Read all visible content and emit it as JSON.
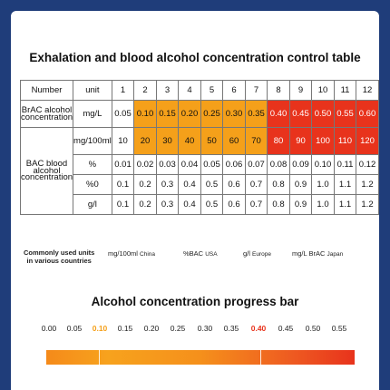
{
  "title": "Exhalation and blood alcohol concentration control table",
  "table": {
    "header": {
      "number_label": "Number",
      "unit_label": "unit",
      "columns": [
        "1",
        "2",
        "3",
        "4",
        "5",
        "6",
        "7",
        "8",
        "9",
        "10",
        "11",
        "12"
      ]
    },
    "brac": {
      "label": "BrAC alcohol concentration",
      "unit": "mg/L",
      "values": [
        "0.05",
        "0.10",
        "0.15",
        "0.20",
        "0.25",
        "0.30",
        "0.35",
        "0.40",
        "0.45",
        "0.50",
        "0.55",
        "0.60"
      ]
    },
    "bac": {
      "label": "BAC blood alcohol concentration",
      "rows": [
        {
          "unit": "mg/100ml",
          "values": [
            "10",
            "20",
            "30",
            "40",
            "50",
            "60",
            "70",
            "80",
            "90",
            "100",
            "110",
            "120"
          ]
        },
        {
          "unit": "%",
          "values": [
            "0.01",
            "0.02",
            "0.03",
            "0.04",
            "0.05",
            "0.06",
            "0.07",
            "0.08",
            "0.09",
            "0.10",
            "0.11",
            "0.12"
          ]
        },
        {
          "unit": "%0",
          "values": [
            "0.1",
            "0.2",
            "0.3",
            "0.4",
            "0.5",
            "0.6",
            "0.7",
            "0.8",
            "0.9",
            "1.0",
            "1.1",
            "1.2"
          ]
        },
        {
          "unit": "g/l",
          "values": [
            "0.1",
            "0.2",
            "0.3",
            "0.4",
            "0.5",
            "0.6",
            "0.7",
            "0.8",
            "0.9",
            "1.0",
            "1.1",
            "1.2"
          ]
        }
      ]
    },
    "colors": {
      "orange": "#f5a01a",
      "red": "#e8331c"
    }
  },
  "units_note": {
    "caption_line1": "Commonly used units",
    "caption_line2": "in various countries",
    "items": [
      {
        "unit": "mg/100ml",
        "country": "China"
      },
      {
        "unit": "%BAC",
        "country": "USA"
      },
      {
        "unit": "g/l",
        "country": "Europe"
      },
      {
        "unit": "mg/L BrAC",
        "country": "Japan"
      }
    ]
  },
  "progress_bar": {
    "title": "Alcohol concentration progress bar",
    "ticks": [
      "0.00",
      "0.05",
      "0.10",
      "0.15",
      "0.20",
      "0.25",
      "0.30",
      "0.35",
      "0.40",
      "0.45",
      "0.50",
      "0.55"
    ],
    "highlight_orange": "0.10",
    "highlight_red": "0.40"
  }
}
